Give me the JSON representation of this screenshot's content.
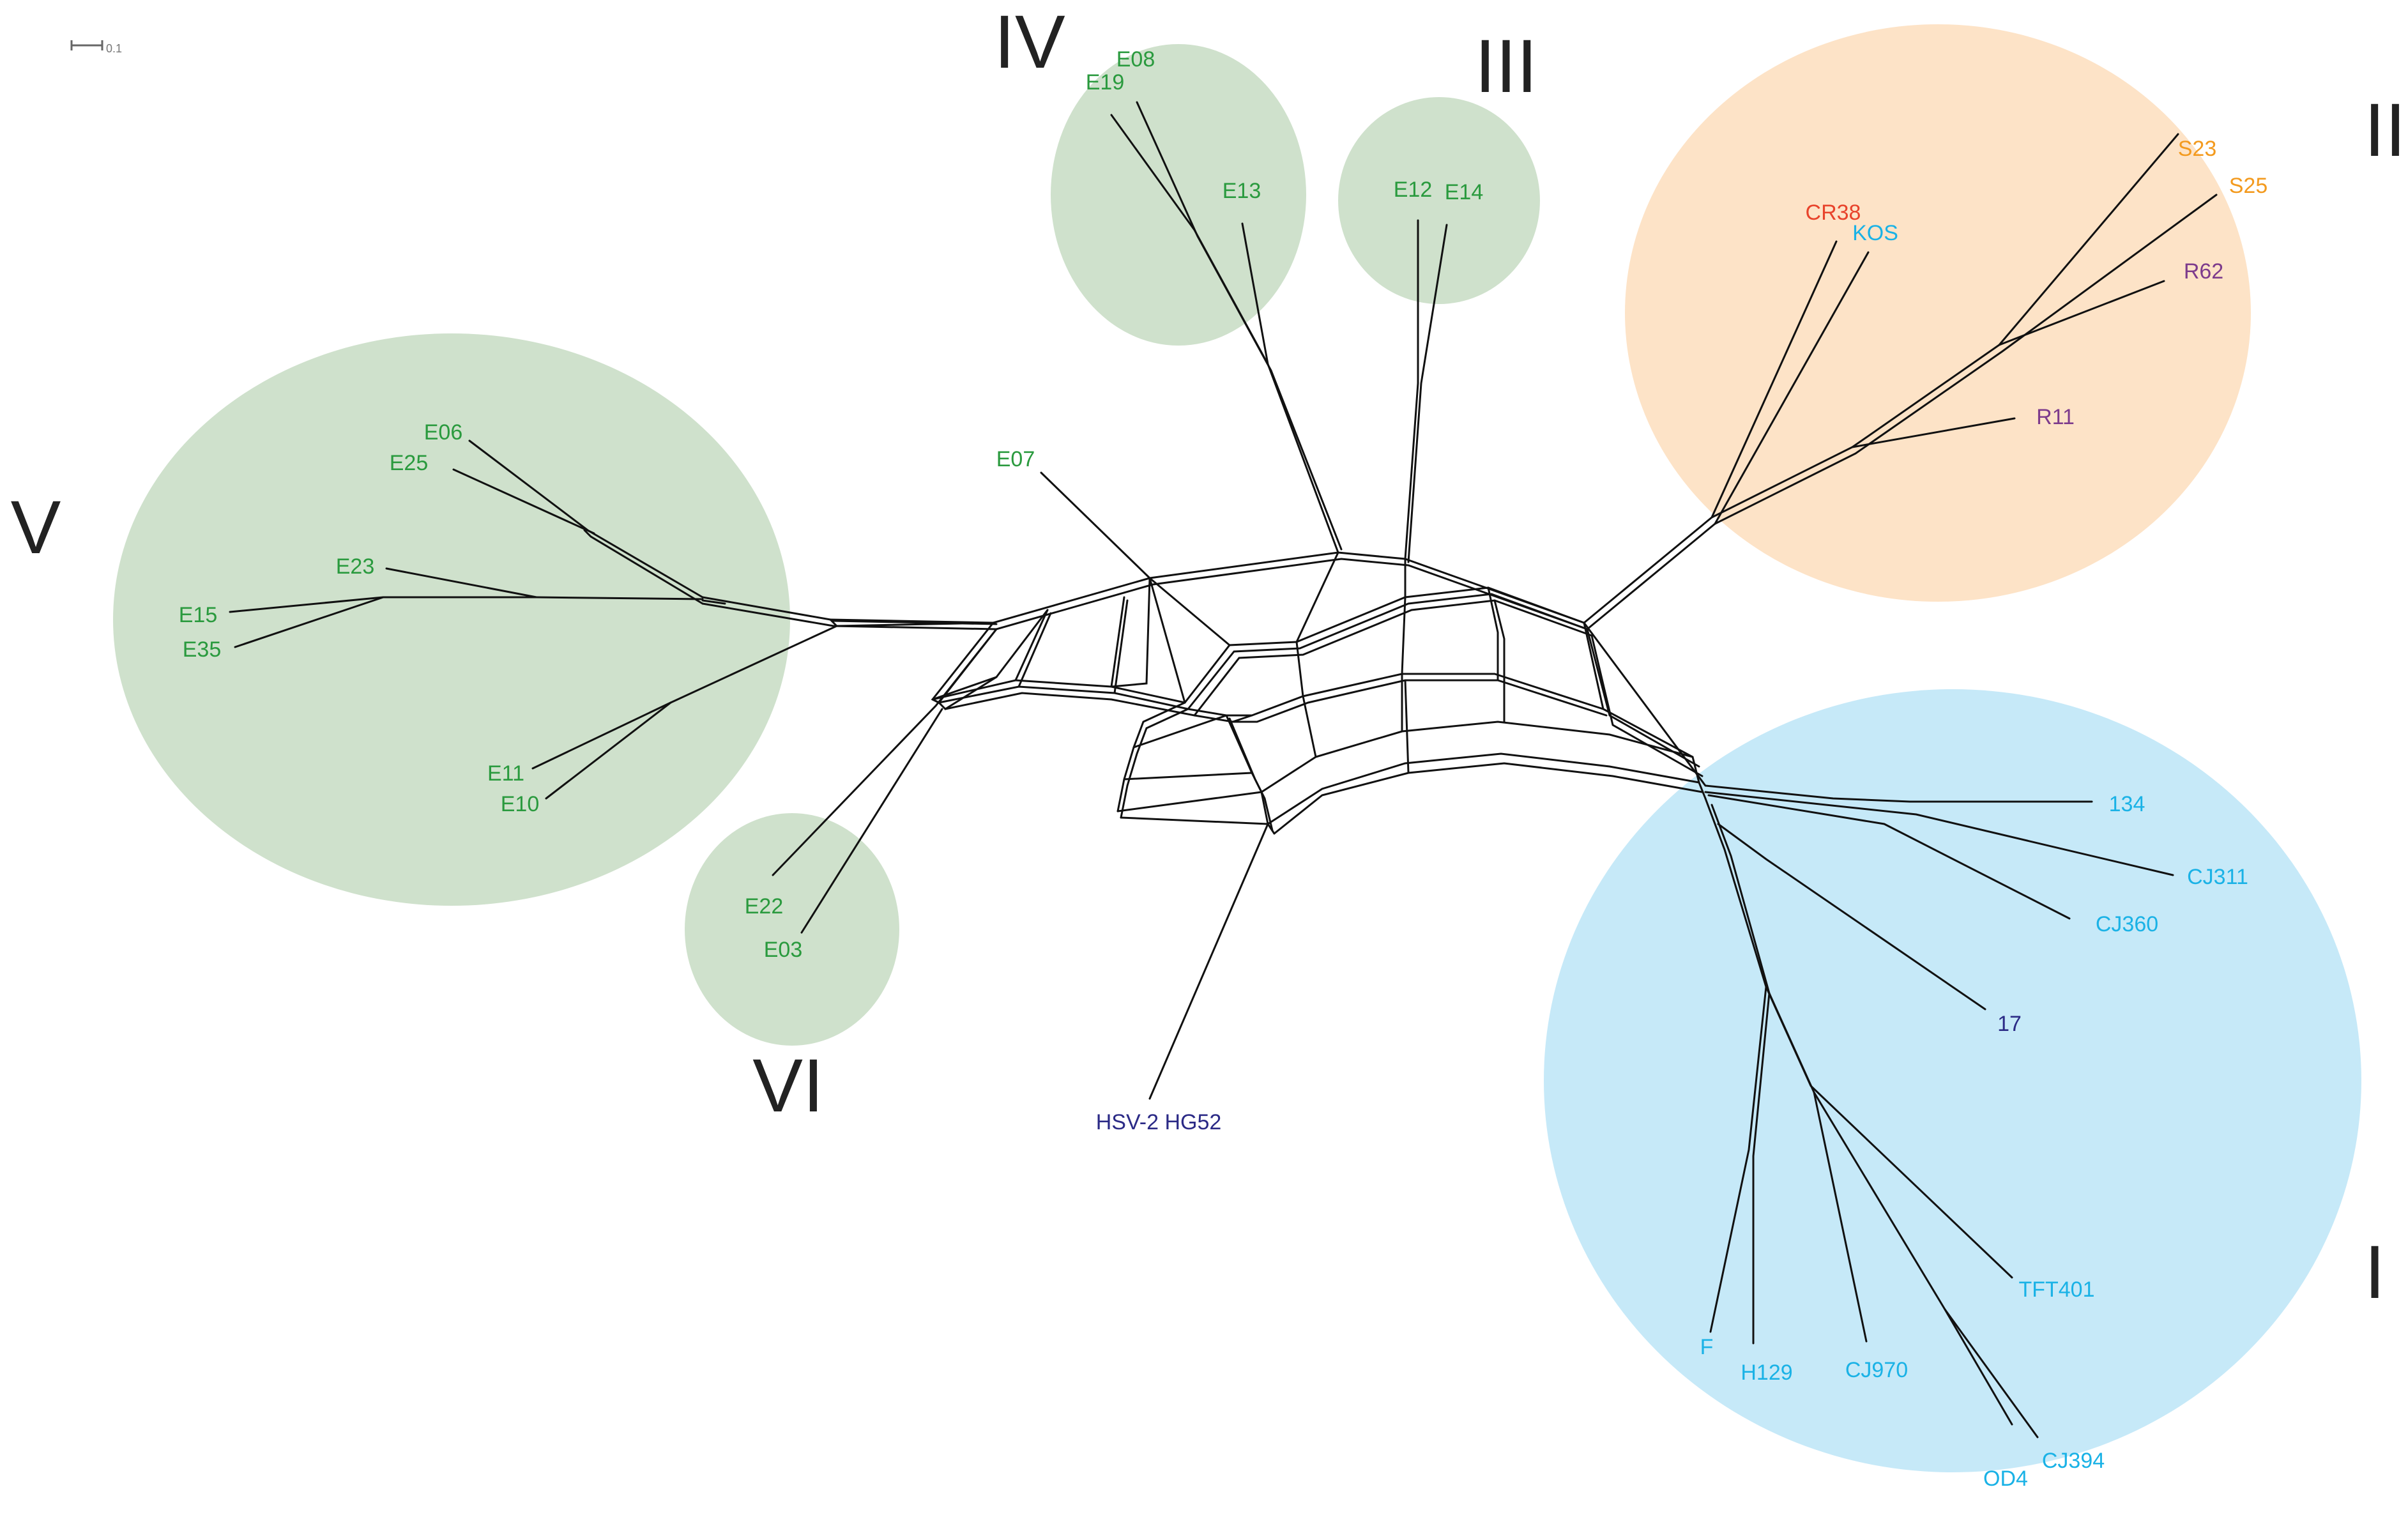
{
  "colors": {
    "green_clade": "#cfe1cc",
    "orange_clade": "#fde3c7",
    "blue_clade": "#c6e9f8",
    "green_text": "#2a9a3e",
    "cyan_text": "#1ab2e6",
    "orange_text": "#f39a1e",
    "red_text": "#e8432b",
    "purple_text": "#7d3b8c",
    "navy_text": "#2b2a86",
    "edge": "#111111"
  },
  "scale_bar": {
    "label": "0.1"
  },
  "clades": [
    {
      "id": "I",
      "label": "I",
      "color": "blue_clade"
    },
    {
      "id": "II",
      "label": "II",
      "color": "orange_clade"
    },
    {
      "id": "III",
      "label": "III",
      "color": "green_clade"
    },
    {
      "id": "IV",
      "label": "IV",
      "color": "green_clade"
    },
    {
      "id": "V",
      "label": "V",
      "color": "green_clade"
    },
    {
      "id": "VI",
      "label": "VI",
      "color": "green_clade"
    }
  ],
  "taxa": [
    {
      "label": "E08",
      "clade": "IV",
      "color": "green_text"
    },
    {
      "label": "E19",
      "clade": "IV",
      "color": "green_text"
    },
    {
      "label": "E13",
      "clade": "IV",
      "color": "green_text"
    },
    {
      "label": "E12",
      "clade": "III",
      "color": "green_text"
    },
    {
      "label": "E14",
      "clade": "III",
      "color": "green_text"
    },
    {
      "label": "S23",
      "clade": "II",
      "color": "orange_text"
    },
    {
      "label": "S25",
      "clade": "II",
      "color": "orange_text"
    },
    {
      "label": "CR38",
      "clade": "II",
      "color": "red_text"
    },
    {
      "label": "KOS",
      "clade": "II",
      "color": "cyan_text"
    },
    {
      "label": "R62",
      "clade": "II",
      "color": "purple_text"
    },
    {
      "label": "R11",
      "clade": "II",
      "color": "purple_text"
    },
    {
      "label": "E06",
      "clade": "V",
      "color": "green_text"
    },
    {
      "label": "E25",
      "clade": "V",
      "color": "green_text"
    },
    {
      "label": "E23",
      "clade": "V",
      "color": "green_text"
    },
    {
      "label": "E15",
      "clade": "V",
      "color": "green_text"
    },
    {
      "label": "E35",
      "clade": "V",
      "color": "green_text"
    },
    {
      "label": "E11",
      "clade": "V",
      "color": "green_text"
    },
    {
      "label": "E10",
      "clade": "V",
      "color": "green_text"
    },
    {
      "label": "E07",
      "clade": "",
      "color": "green_text"
    },
    {
      "label": "E22",
      "clade": "VI",
      "color": "green_text"
    },
    {
      "label": "E03",
      "clade": "VI",
      "color": "green_text"
    },
    {
      "label": "HSV-2 HG52",
      "clade": "",
      "color": "navy_text"
    },
    {
      "label": "134",
      "clade": "I",
      "color": "cyan_text"
    },
    {
      "label": "CJ311",
      "clade": "I",
      "color": "cyan_text"
    },
    {
      "label": "CJ360",
      "clade": "I",
      "color": "cyan_text"
    },
    {
      "label": "17",
      "clade": "I",
      "color": "navy_text"
    },
    {
      "label": "TFT401",
      "clade": "I",
      "color": "cyan_text"
    },
    {
      "label": "F",
      "clade": "I",
      "color": "cyan_text"
    },
    {
      "label": "H129",
      "clade": "I",
      "color": "cyan_text"
    },
    {
      "label": "CJ970",
      "clade": "I",
      "color": "cyan_text"
    },
    {
      "label": "OD4",
      "clade": "I",
      "color": "cyan_text"
    },
    {
      "label": "CJ394",
      "clade": "I",
      "color": "cyan_text"
    }
  ]
}
